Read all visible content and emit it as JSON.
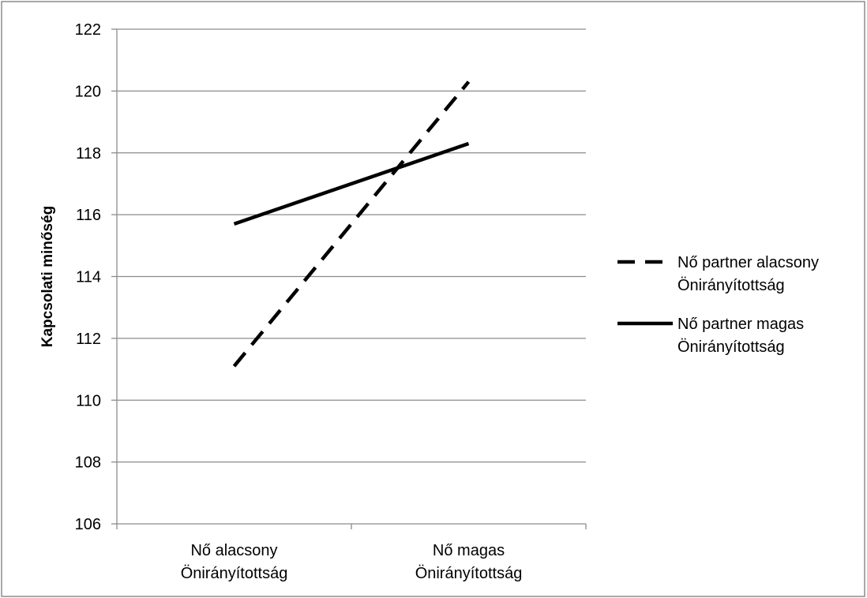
{
  "chart_data": {
    "type": "line",
    "categories": [
      [
        "Nő alacsony",
        "Önirányítottság"
      ],
      [
        "Nő magas",
        "Önirányítottság"
      ]
    ],
    "ylabel": "Kapcsolati minőség",
    "ylim": [
      106,
      122
    ],
    "ytick_step": 2,
    "grid": "horizontal",
    "legend_position": "right",
    "series": [
      {
        "name": [
          "Nő partner alacsony",
          "Önirányítottság"
        ],
        "values": [
          111.1,
          120.3
        ],
        "style": "dashed",
        "color": "#000000"
      },
      {
        "name": [
          "Nő partner magas",
          "Önirányítottság"
        ],
        "values": [
          115.7,
          118.3
        ],
        "style": "solid",
        "color": "#000000"
      }
    ]
  }
}
